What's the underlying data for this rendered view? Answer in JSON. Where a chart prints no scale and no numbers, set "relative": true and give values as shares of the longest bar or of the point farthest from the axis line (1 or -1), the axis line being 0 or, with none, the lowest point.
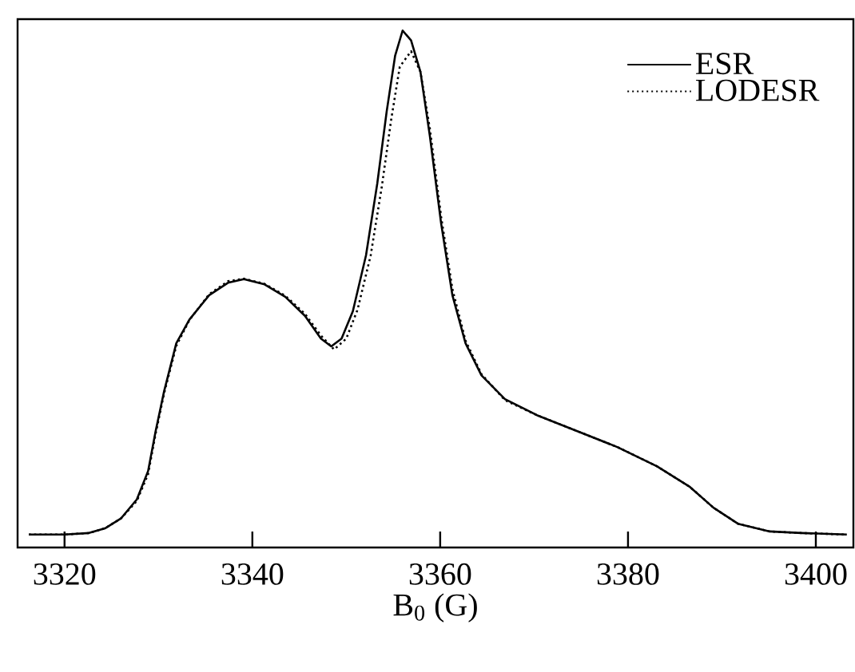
{
  "chart_data": {
    "type": "line",
    "xlabel": "B$_{0}$ (G)",
    "relative": true,
    "xlim": [
      3315,
      3404
    ],
    "xticks": [
      3320,
      3340,
      3360,
      3380,
      3400
    ],
    "legend": "top right",
    "marker": "none",
    "grid": false,
    "series": [
      {
        "name": "ESR",
        "color": "#000000",
        "line_style": "solid",
        "x": [
          3316.2,
          3320,
          3322.6,
          3324.3,
          3326,
          3327.7,
          3328.9,
          3329.7,
          3330.6,
          3331.9,
          3333.3,
          3335.4,
          3337.4,
          3339.1,
          3341.3,
          3343.5,
          3345.6,
          3347.3,
          3348.4,
          3349.5,
          3350.7,
          3352.1,
          3353.3,
          3354.3,
          3355.2,
          3356.0,
          3356.9,
          3357.9,
          3358.9,
          3360.1,
          3361.3,
          3362.7,
          3364.4,
          3366.9,
          3370.3,
          3374.6,
          3378.9,
          3383.1,
          3386.6,
          3389.1,
          3391.7,
          3395.1,
          3398.5,
          3403.3
        ],
        "values": [
          0.025,
          0.025,
          0.028,
          0.037,
          0.056,
          0.093,
          0.148,
          0.225,
          0.302,
          0.395,
          0.441,
          0.488,
          0.512,
          0.519,
          0.509,
          0.485,
          0.448,
          0.404,
          0.389,
          0.404,
          0.457,
          0.565,
          0.704,
          0.843,
          0.951,
          1.0,
          0.981,
          0.92,
          0.796,
          0.627,
          0.488,
          0.395,
          0.333,
          0.287,
          0.256,
          0.225,
          0.194,
          0.157,
          0.117,
          0.077,
          0.046,
          0.031,
          0.028,
          0.025
        ]
      },
      {
        "name": "LODESR",
        "color": "#000000",
        "line_style": "dotted",
        "x": [
          3316.2,
          3320,
          3322.6,
          3324.3,
          3326,
          3327.7,
          3328.9,
          3329.7,
          3330.6,
          3331.9,
          3333.3,
          3335.4,
          3337.4,
          3339.1,
          3341.3,
          3343.5,
          3345.6,
          3347.3,
          3348.7,
          3350.0,
          3351.2,
          3352.6,
          3353.8,
          3354.8,
          3355.7,
          3356.9,
          3357.9,
          3358.9,
          3360.1,
          3361.3,
          3362.7,
          3364.4,
          3366.9,
          3370.3,
          3374.6,
          3378.9,
          3383.1,
          3386.6,
          3389.1,
          3391.7,
          3395.1,
          3398.5,
          3403.3
        ],
        "values": [
          0.025,
          0.025,
          0.028,
          0.037,
          0.056,
          0.09,
          0.142,
          0.22,
          0.298,
          0.39,
          0.44,
          0.49,
          0.515,
          0.52,
          0.51,
          0.487,
          0.452,
          0.41,
          0.383,
          0.404,
          0.46,
          0.565,
          0.7,
          0.83,
          0.93,
          0.96,
          0.92,
          0.81,
          0.64,
          0.5,
          0.4,
          0.335,
          0.285,
          0.256,
          0.225,
          0.194,
          0.157,
          0.117,
          0.077,
          0.046,
          0.031,
          0.028,
          0.025
        ]
      }
    ]
  }
}
